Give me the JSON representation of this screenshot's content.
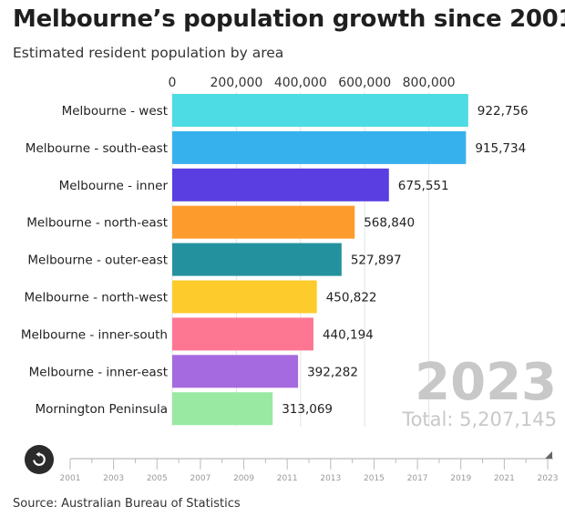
{
  "header": {
    "title": "Melbourne’s population growth since 2001",
    "subtitle": "Estimated resident population by area"
  },
  "chart_data": {
    "type": "bar",
    "orientation": "horizontal",
    "title": "Melbourne’s population growth since 2001",
    "subtitle": "Estimated resident population by area",
    "categories": [
      "Melbourne - west",
      "Melbourne - south-east",
      "Melbourne - inner",
      "Melbourne - north-east",
      "Melbourne - outer-east",
      "Melbourne - north-west",
      "Melbourne - inner-south",
      "Melbourne - inner-east",
      "Mornington Peninsula"
    ],
    "values": [
      922756,
      915734,
      675551,
      568840,
      527897,
      450822,
      440194,
      392282,
      313069
    ],
    "value_labels": [
      "922,756",
      "915,734",
      "675,551",
      "568,840",
      "527,897",
      "450,822",
      "440,194",
      "392,282",
      "313,069"
    ],
    "colors": [
      "#4ddbe4",
      "#37b1ee",
      "#5a3ee2",
      "#fd9b2c",
      "#24929e",
      "#fdcc2c",
      "#fd7793",
      "#a66ae0",
      "#99e9a2"
    ],
    "x_ticks": [
      0,
      200000,
      400000,
      600000,
      800000
    ],
    "x_tick_labels": [
      "0",
      "200,000",
      "400,000",
      "600,000",
      "800,000"
    ],
    "xlim": [
      0,
      940000
    ],
    "grid": true,
    "year": "2023",
    "total_label": "Total: 5,207,145"
  },
  "timeline": {
    "years": [
      "2001",
      "2003",
      "2005",
      "2007",
      "2009",
      "2011",
      "2013",
      "2015",
      "2017",
      "2019",
      "2021",
      "2023"
    ],
    "selected_year": "2023",
    "replay_icon": "replay-icon"
  },
  "footer": {
    "source": "Source: Australian Bureau of Statistics"
  }
}
